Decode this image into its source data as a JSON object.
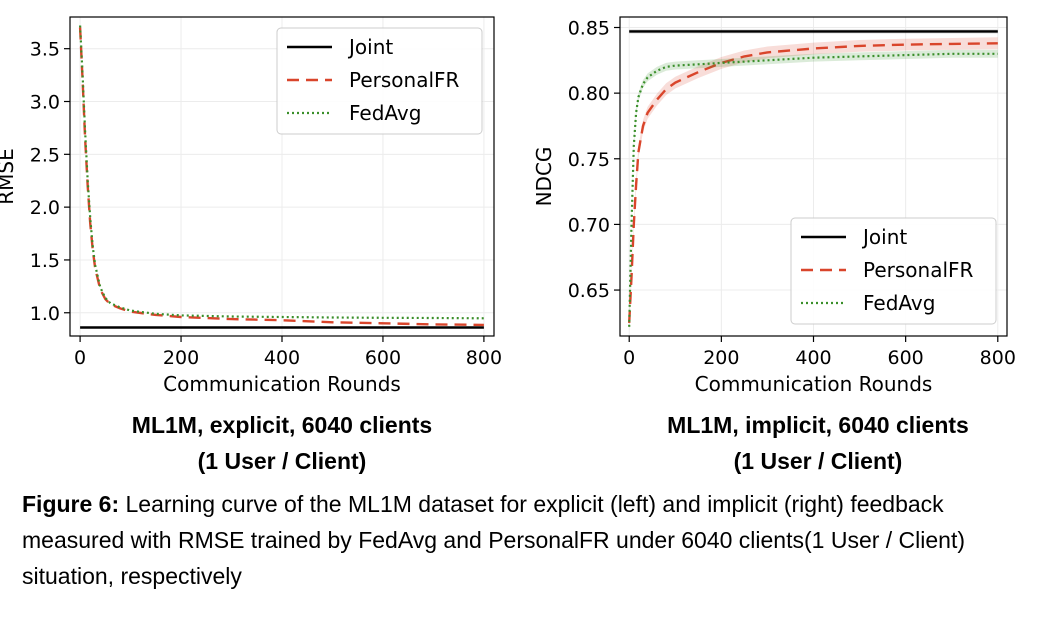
{
  "chart_data": [
    {
      "type": "line",
      "xlabel": "Communication Rounds",
      "ylabel": "RMSE",
      "xlim": [
        -20,
        820
      ],
      "ylim": [
        0.78,
        3.8
      ],
      "xticks": [
        0,
        200,
        400,
        600,
        800
      ],
      "xtick_labels": [
        "0",
        "200",
        "400",
        "600",
        "800"
      ],
      "yticks": [
        1.0,
        1.5,
        2.0,
        2.5,
        3.0,
        3.5
      ],
      "ytick_labels": [
        "1.0",
        "1.5",
        "2.0",
        "2.5",
        "3.0",
        "3.5"
      ],
      "grid": true,
      "legend_position": "top-right",
      "series": [
        {
          "name": "Joint",
          "color": "#000000",
          "style": "solid",
          "x": [
            0,
            800
          ],
          "y": [
            0.86,
            0.86
          ]
        },
        {
          "name": "PersonalFR",
          "color": "#d9452b",
          "style": "dashed",
          "x": [
            0,
            5,
            10,
            15,
            20,
            25,
            30,
            40,
            50,
            60,
            80,
            100,
            150,
            200,
            300,
            400,
            500,
            600,
            700,
            800
          ],
          "y": [
            3.7,
            3.2,
            2.65,
            2.2,
            1.85,
            1.6,
            1.42,
            1.22,
            1.13,
            1.08,
            1.04,
            1.01,
            0.98,
            0.96,
            0.94,
            0.93,
            0.91,
            0.9,
            0.89,
            0.885
          ]
        },
        {
          "name": "FedAvg",
          "color": "#3a8f2a",
          "style": "dotted",
          "x": [
            0,
            5,
            10,
            15,
            20,
            25,
            30,
            40,
            50,
            60,
            80,
            100,
            150,
            200,
            300,
            400,
            500,
            600,
            700,
            800
          ],
          "y": [
            3.72,
            3.25,
            2.72,
            2.25,
            1.9,
            1.63,
            1.45,
            1.24,
            1.14,
            1.09,
            1.05,
            1.02,
            0.99,
            0.975,
            0.965,
            0.96,
            0.955,
            0.952,
            0.95,
            0.948
          ]
        }
      ]
    },
    {
      "type": "line",
      "xlabel": "Communication Rounds",
      "ylabel": "NDCG",
      "xlim": [
        -20,
        820
      ],
      "ylim": [
        0.615,
        0.858
      ],
      "xticks": [
        0,
        200,
        400,
        600,
        800
      ],
      "xtick_labels": [
        "0",
        "200",
        "400",
        "600",
        "800"
      ],
      "yticks": [
        0.65,
        0.7,
        0.75,
        0.8,
        0.85
      ],
      "ytick_labels": [
        "0.65",
        "0.70",
        "0.75",
        "0.80",
        "0.85"
      ],
      "grid": true,
      "legend_position": "bottom-right",
      "series": [
        {
          "name": "Joint",
          "color": "#000000",
          "style": "solid",
          "x": [
            0,
            800
          ],
          "y": [
            0.847,
            0.847
          ],
          "band": 0.0015
        },
        {
          "name": "PersonalFR",
          "color": "#d9452b",
          "style": "dashed",
          "x": [
            0,
            5,
            10,
            15,
            20,
            30,
            40,
            60,
            80,
            100,
            150,
            200,
            250,
            300,
            400,
            500,
            600,
            700,
            800
          ],
          "y": [
            0.625,
            0.66,
            0.7,
            0.73,
            0.755,
            0.775,
            0.785,
            0.795,
            0.803,
            0.808,
            0.816,
            0.823,
            0.828,
            0.831,
            0.834,
            0.836,
            0.837,
            0.8375,
            0.838
          ],
          "band": 0.0045
        },
        {
          "name": "FedAvg",
          "color": "#3a8f2a",
          "style": "dotted",
          "x": [
            0,
            5,
            10,
            15,
            20,
            30,
            40,
            60,
            80,
            100,
            150,
            200,
            300,
            400,
            500,
            600,
            700,
            800
          ],
          "y": [
            0.622,
            0.7,
            0.76,
            0.785,
            0.797,
            0.807,
            0.812,
            0.817,
            0.82,
            0.821,
            0.822,
            0.823,
            0.825,
            0.827,
            0.828,
            0.829,
            0.83,
            0.83
          ],
          "band": 0.003
        }
      ]
    }
  ],
  "subtitles": [
    {
      "line1": "ML1M, explicit, 6040 clients",
      "line2": "(1 User / Client)"
    },
    {
      "line1": "ML1M, implicit, 6040 clients",
      "line2": "(1 User / Client)"
    }
  ],
  "caption": {
    "label": "Figure 6:",
    "text": " Learning curve of the ML1M dataset for explicit (left) and implicit (right) feedback measured with RMSE trained by FedAvg and PersonalFR under 6040 clients(1 User / Client) situation, respectively"
  }
}
